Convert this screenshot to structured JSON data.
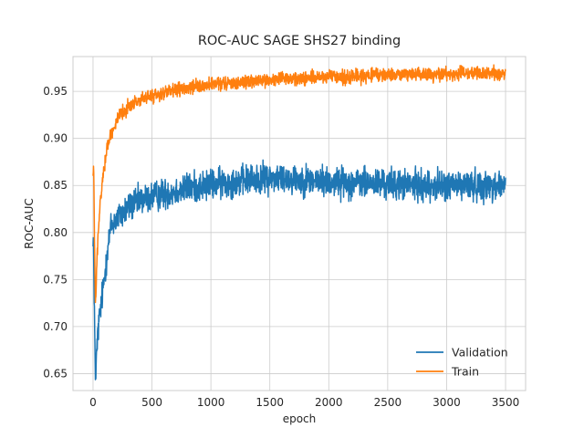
{
  "chart_data": {
    "type": "line",
    "title": "ROC-AUC SAGE SHS27 binding",
    "xlabel": "epoch",
    "ylabel": "ROC-AUC",
    "xlim": [
      -170,
      3670
    ],
    "ylim": [
      0.632,
      0.987
    ],
    "xticks": [
      0,
      500,
      1000,
      1500,
      2000,
      2500,
      3000,
      3500
    ],
    "xtick_labels": [
      "0",
      "500",
      "1000",
      "1500",
      "2000",
      "2500",
      "3000",
      "3500"
    ],
    "yticks": [
      0.65,
      0.7,
      0.75,
      0.8,
      0.85,
      0.9,
      0.95
    ],
    "ytick_labels": [
      "0.65",
      "0.70",
      "0.75",
      "0.80",
      "0.85",
      "0.90",
      "0.95"
    ],
    "grid": true,
    "legend_position": "lower-right",
    "series": [
      {
        "name": "Validation",
        "color": "#1f77b4",
        "noise": 0.008,
        "x": [
          0,
          5,
          10,
          15,
          20,
          25,
          30,
          40,
          50,
          60,
          80,
          100,
          120,
          150,
          170,
          200,
          250,
          300,
          400,
          500,
          600,
          700,
          800,
          900,
          1000,
          1200,
          1400,
          1500,
          1600,
          1700,
          1800,
          1900,
          2000,
          2200,
          2400,
          2600,
          2800,
          3000,
          3200,
          3400,
          3500
        ],
        "values": [
          0.8,
          0.78,
          0.72,
          0.69,
          0.655,
          0.65,
          0.67,
          0.69,
          0.705,
          0.715,
          0.735,
          0.755,
          0.78,
          0.805,
          0.81,
          0.815,
          0.82,
          0.827,
          0.834,
          0.838,
          0.841,
          0.844,
          0.847,
          0.849,
          0.851,
          0.854,
          0.857,
          0.858,
          0.858,
          0.857,
          0.856,
          0.855,
          0.854,
          0.853,
          0.852,
          0.851,
          0.85,
          0.85,
          0.85,
          0.85,
          0.85
        ]
      },
      {
        "name": "Train",
        "color": "#ff7f0e",
        "noise": 0.0035,
        "x": [
          0,
          5,
          10,
          15,
          20,
          25,
          30,
          40,
          50,
          60,
          80,
          100,
          120,
          150,
          200,
          250,
          300,
          400,
          500,
          600,
          700,
          800,
          900,
          1000,
          1200,
          1400,
          1600,
          1800,
          2000,
          2200,
          2400,
          2600,
          2800,
          3000,
          3200,
          3400,
          3500
        ],
        "values": [
          0.86,
          0.87,
          0.82,
          0.77,
          0.725,
          0.73,
          0.76,
          0.79,
          0.81,
          0.83,
          0.855,
          0.875,
          0.89,
          0.905,
          0.918,
          0.927,
          0.934,
          0.941,
          0.945,
          0.948,
          0.951,
          0.953,
          0.955,
          0.957,
          0.959,
          0.961,
          0.963,
          0.964,
          0.965,
          0.966,
          0.967,
          0.968,
          0.968,
          0.969,
          0.969,
          0.969,
          0.969
        ]
      }
    ]
  }
}
